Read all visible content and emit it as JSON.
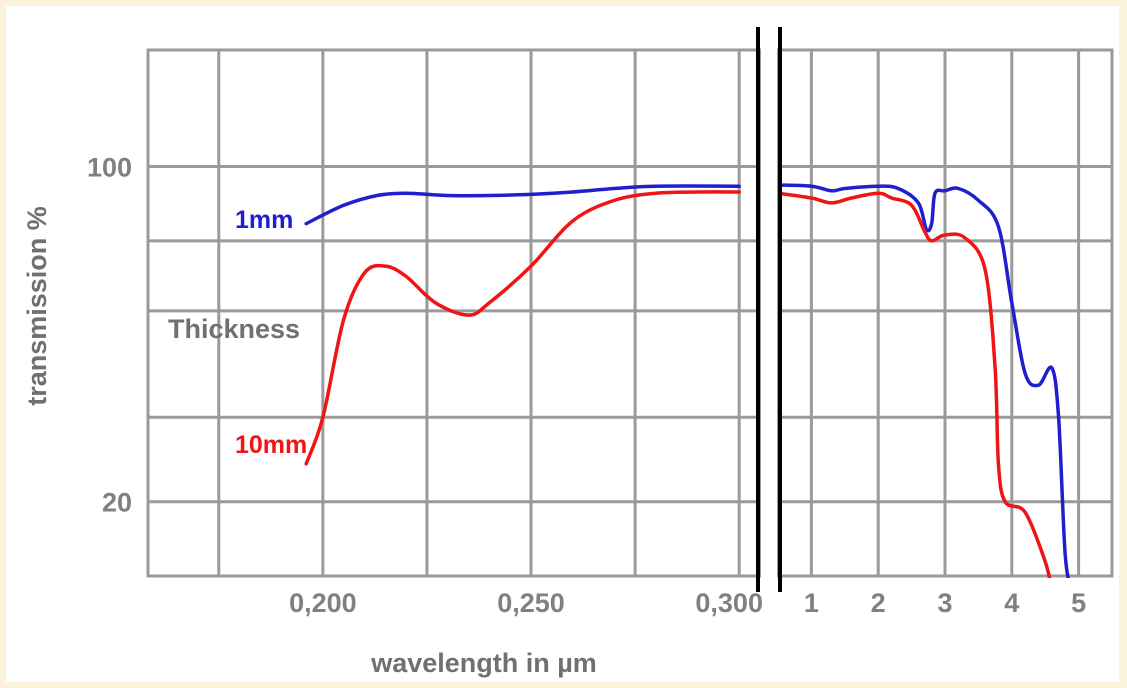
{
  "chart_data": {
    "type": "line",
    "xlabel": "wavelength in µm",
    "ylabel": "transmission %",
    "legend_title": "Thickness",
    "colors": {
      "1mm": "#1f1fd0",
      "10mm": "#f01414"
    },
    "axis_break": "between 0,300 and 1",
    "x_scale_left": {
      "unit": "µm",
      "range": [
        0.158,
        0.305
      ],
      "ticks": [
        "0,200",
        "0,250",
        "0,300"
      ]
    },
    "x_scale_right": {
      "unit": "µm",
      "range": [
        0.5,
        5.5
      ],
      "ticks": [
        "1",
        "2",
        "3",
        "4",
        "5"
      ]
    },
    "y_scale": {
      "type": "log",
      "range": [
        14,
        175
      ],
      "ticks": [
        "100",
        "20"
      ]
    },
    "grid": true,
    "series": [
      {
        "name": "1mm",
        "segment_left": [
          [
            0.196,
            76
          ],
          [
            0.205,
            83
          ],
          [
            0.213,
            87
          ],
          [
            0.22,
            88
          ],
          [
            0.23,
            87
          ],
          [
            0.24,
            87
          ],
          [
            0.25,
            87.5
          ],
          [
            0.26,
            88.5
          ],
          [
            0.27,
            90
          ],
          [
            0.28,
            91
          ],
          [
            0.3,
            91
          ]
        ],
        "segment_right": [
          [
            0.5,
            91.5
          ],
          [
            1.0,
            91
          ],
          [
            1.3,
            89
          ],
          [
            1.5,
            90
          ],
          [
            2.0,
            91
          ],
          [
            2.3,
            90
          ],
          [
            2.6,
            84
          ],
          [
            2.72,
            74
          ],
          [
            2.8,
            76
          ],
          [
            2.85,
            88
          ],
          [
            3.0,
            89
          ],
          [
            3.2,
            90
          ],
          [
            3.5,
            85
          ],
          [
            3.8,
            75
          ],
          [
            4.0,
            52
          ],
          [
            4.2,
            37
          ],
          [
            4.4,
            35
          ],
          [
            4.6,
            38
          ],
          [
            4.7,
            30
          ],
          [
            4.8,
            15.5
          ],
          [
            4.9,
            13
          ]
        ]
      },
      {
        "name": "10mm",
        "segment_left": [
          [
            0.196,
            24
          ],
          [
            0.2,
            30
          ],
          [
            0.205,
            48
          ],
          [
            0.21,
            60
          ],
          [
            0.215,
            62
          ],
          [
            0.22,
            59
          ],
          [
            0.227,
            52
          ],
          [
            0.235,
            49
          ],
          [
            0.24,
            52
          ],
          [
            0.25,
            62
          ],
          [
            0.26,
            77
          ],
          [
            0.27,
            85
          ],
          [
            0.28,
            88
          ],
          [
            0.29,
            88.5
          ],
          [
            0.3,
            88.5
          ]
        ],
        "segment_right": [
          [
            0.5,
            88
          ],
          [
            1.0,
            86
          ],
          [
            1.3,
            84
          ],
          [
            1.6,
            86
          ],
          [
            2.0,
            88
          ],
          [
            2.2,
            86
          ],
          [
            2.5,
            83
          ],
          [
            2.7,
            73
          ],
          [
            2.8,
            70
          ],
          [
            3.0,
            72
          ],
          [
            3.3,
            71
          ],
          [
            3.6,
            61
          ],
          [
            3.75,
            38
          ],
          [
            3.8,
            24
          ],
          [
            3.9,
            20
          ],
          [
            4.2,
            19
          ],
          [
            4.5,
            15
          ],
          [
            4.6,
            13
          ]
        ]
      }
    ]
  }
}
